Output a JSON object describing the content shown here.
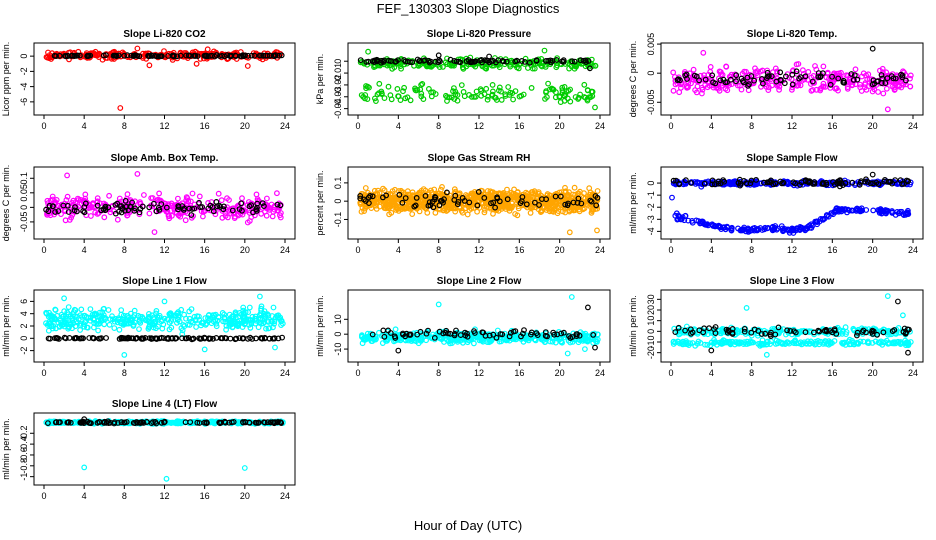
{
  "figure": {
    "title": "FEF_130303  Slope Diagnostics",
    "xlabel": "Hour of Day (UTC)"
  },
  "colors": {
    "red": "#ff0000",
    "green": "#00cc00",
    "magenta": "#ff00ff",
    "orange": "#ffa500",
    "blue": "#0000ff",
    "cyan": "#00ffff",
    "black": "#000000"
  },
  "chart_data": [
    {
      "type": "scatter",
      "title": "Slope Li-820 CO2",
      "ylabel": "Licor ppm per min.",
      "xlim": [
        0,
        24
      ],
      "ylim": [
        -7.2,
        1.2
      ],
      "xticks": [
        0,
        4,
        8,
        12,
        16,
        20,
        24
      ],
      "yticks": [
        -6,
        -4,
        -2,
        0
      ],
      "series": [
        {
          "color": "red",
          "bands": [
            {
              "center": 0.1,
              "spread": 0.7,
              "n": 260
            }
          ],
          "outliers": [
            [
              7.6,
              -6.8
            ],
            [
              10.5,
              -1.2
            ],
            [
              15.2,
              -1.0
            ],
            [
              20.3,
              -1.3
            ],
            [
              16.3,
              0.9
            ],
            [
              9.3,
              1.0
            ]
          ]
        },
        {
          "color": "black",
          "bands": [
            {
              "center": 0.05,
              "spread": 0.12,
              "n": 110
            }
          ],
          "outliers": []
        }
      ]
    },
    {
      "type": "scatter",
      "title": "Slope Li-820 Pressure",
      "ylabel": "kPa per min.",
      "xlim": [
        0,
        24
      ],
      "ylim": [
        -0.042,
        0.012
      ],
      "xticks": [
        0,
        4,
        8,
        12,
        16,
        20,
        24
      ],
      "yticks": [
        -0.04,
        -0.03,
        -0.02,
        -0.01,
        0.0
      ],
      "series": [
        {
          "color": "green",
          "bands": [
            {
              "center": -0.002,
              "spread": 0.006,
              "n": 230
            },
            {
              "center": -0.028,
              "spread": 0.012,
              "n": 140
            }
          ],
          "outliers": [
            [
              1.0,
              0.008
            ],
            [
              18.5,
              0.009
            ],
            [
              23.5,
              -0.039
            ]
          ]
        },
        {
          "color": "black",
          "bands": [
            {
              "center": 0.0,
              "spread": 0.002,
              "n": 90
            }
          ],
          "outliers": [
            [
              8.0,
              0.005
            ],
            [
              13.0,
              0.004
            ],
            [
              23.0,
              -0.006
            ]
          ]
        }
      ]
    },
    {
      "type": "scatter",
      "title": "Slope Li-820 Temp.",
      "ylabel": "degrees C per min.",
      "xlim": [
        0,
        24
      ],
      "ylim": [
        -0.0065,
        0.0045
      ],
      "xticks": [
        0,
        4,
        8,
        12,
        16,
        20,
        24
      ],
      "yticks": [
        -0.005,
        0.0,
        0.005
      ],
      "series": [
        {
          "color": "magenta",
          "bands": [
            {
              "center": -0.0012,
              "spread": 0.0032,
              "n": 330
            }
          ],
          "outliers": [
            [
              21.5,
              -0.0062
            ],
            [
              3.2,
              0.0035
            ]
          ]
        },
        {
          "color": "black",
          "bands": [
            {
              "center": -0.001,
              "spread": 0.0018,
              "n": 80
            }
          ],
          "outliers": [
            [
              20.0,
              0.0042
            ]
          ]
        }
      ]
    },
    {
      "type": "scatter",
      "title": "Slope Amb. Box Temp.",
      "ylabel": "degrees C per min.",
      "xlim": [
        0,
        24
      ],
      "ylim": [
        -0.095,
        0.125
      ],
      "xticks": [
        0,
        4,
        8,
        12,
        16,
        20,
        24
      ],
      "yticks": [
        -0.05,
        0.0,
        0.05,
        0.1
      ],
      "series": [
        {
          "color": "magenta",
          "bands": [
            {
              "center": 0.0,
              "spread": 0.06,
              "n": 330
            }
          ],
          "outliers": [
            [
              9.3,
              0.115
            ],
            [
              2.3,
              0.11
            ],
            [
              11.0,
              -0.085
            ]
          ]
        },
        {
          "color": "black",
          "bands": [
            {
              "center": 0.0,
              "spread": 0.03,
              "n": 90
            }
          ],
          "outliers": []
        }
      ]
    },
    {
      "type": "scatter",
      "title": "Slope Gas Stream RH",
      "ylabel": "percent per min.",
      "xlim": [
        0,
        24
      ],
      "ylim": [
        -0.185,
        0.165
      ],
      "xticks": [
        0,
        4,
        8,
        12,
        16,
        20,
        24
      ],
      "yticks": [
        -0.1,
        0.0,
        0.1
      ],
      "series": [
        {
          "color": "orange",
          "bands": [
            {
              "center": 0.0,
              "spread": 0.09,
              "n": 900
            }
          ],
          "outliers": [
            [
              23.7,
              -0.16
            ],
            [
              21.0,
              -0.17
            ]
          ]
        },
        {
          "color": "black",
          "bands": [
            {
              "center": 0.0,
              "spread": 0.06,
              "n": 70
            }
          ],
          "outliers": []
        }
      ]
    },
    {
      "type": "scatter",
      "title": "Slope Sample Flow",
      "ylabel": "ml/min per min.",
      "xlim": [
        0,
        24
      ],
      "ylim": [
        -4.3,
        1.0
      ],
      "xticks": [
        0,
        4,
        8,
        12,
        16,
        20,
        24
      ],
      "yticks": [
        -4,
        -3,
        -2,
        -1,
        0
      ],
      "series": [
        {
          "color": "blue",
          "bands": [
            {
              "center": 0.0,
              "spread": 0.25,
              "n": 260
            }
          ],
          "curve": [
            [
              0.3,
              -2.7
            ],
            [
              2,
              -3.1
            ],
            [
              4,
              -3.5
            ],
            [
              6,
              -3.8
            ],
            [
              8,
              -3.9
            ],
            [
              10,
              -3.7
            ],
            [
              12,
              -3.9
            ],
            [
              13.5,
              -3.8
            ],
            [
              15,
              -3.0
            ],
            [
              16.5,
              -2.2
            ],
            [
              18,
              -2.2
            ],
            [
              20,
              -2.3
            ],
            [
              22,
              -2.4
            ],
            [
              23.8,
              -2.5
            ]
          ],
          "curve_spread": 0.3,
          "curve_n": 230,
          "outliers": [
            [
              0.1,
              -1.2
            ],
            [
              3.0,
              -0.3
            ]
          ]
        },
        {
          "color": "black",
          "bands": [
            {
              "center": 0.05,
              "spread": 0.35,
              "n": 90
            }
          ],
          "outliers": [
            [
              20.0,
              0.7
            ]
          ]
        }
      ]
    },
    {
      "type": "scatter",
      "title": "Slope Line 1 Flow",
      "ylabel": "ml/min per min.",
      "xlim": [
        0,
        24
      ],
      "ylim": [
        -3.2,
        7.2
      ],
      "xticks": [
        0,
        4,
        8,
        12,
        16,
        20,
        24
      ],
      "yticks": [
        -2,
        0,
        2,
        4,
        6
      ],
      "series": [
        {
          "color": "cyan",
          "bands": [
            {
              "center": 3.0,
              "spread": 2.5,
              "n": 400
            }
          ],
          "outliers": [
            [
              8.0,
              -2.7
            ],
            [
              2.0,
              6.5
            ],
            [
              21.5,
              6.8
            ],
            [
              12.0,
              6.0
            ],
            [
              16.0,
              -1.8
            ],
            [
              23.0,
              -1.5
            ]
          ]
        },
        {
          "color": "black",
          "bands": [
            {
              "center": 0.0,
              "spread": 0.2,
              "n": 120
            }
          ],
          "outliers": []
        }
      ]
    },
    {
      "type": "scatter",
      "title": "Slope Line 2 Flow",
      "ylabel": "ml/min per min.",
      "xlim": [
        0,
        24
      ],
      "ylim": [
        -16,
        27
      ],
      "xticks": [
        0,
        4,
        8,
        12,
        16,
        20,
        24
      ],
      "yticks": [
        -10,
        0,
        10
      ],
      "series": [
        {
          "color": "cyan",
          "bands": [
            {
              "center": -2.0,
              "spread": 5.5,
              "n": 420
            }
          ],
          "outliers": [
            [
              8.0,
              20.0
            ],
            [
              21.2,
              25.0
            ],
            [
              20.8,
              -13.0
            ],
            [
              22.5,
              -10.0
            ]
          ]
        },
        {
          "color": "black",
          "bands": [
            {
              "center": 0.0,
              "spread": 4.0,
              "n": 70
            }
          ],
          "outliers": [
            [
              22.8,
              18.0
            ],
            [
              4.0,
              -11.0
            ],
            [
              23.5,
              -9.0
            ]
          ]
        }
      ]
    },
    {
      "type": "scatter",
      "title": "Slope Line 3 Flow",
      "ylabel": "ml/min per min.",
      "xlim": [
        0,
        24
      ],
      "ylim": [
        -25,
        35
      ],
      "xticks": [
        0,
        4,
        8,
        12,
        16,
        20,
        24
      ],
      "yticks": [
        -20,
        -10,
        0,
        10,
        20,
        30
      ],
      "series": [
        {
          "color": "cyan",
          "bands": [
            {
              "center": 0.0,
              "spread": 5.0,
              "n": 230
            },
            {
              "center": -11.0,
              "spread": 3.5,
              "n": 200
            }
          ],
          "outliers": [
            [
              7.5,
              22.0
            ],
            [
              21.5,
              33.0
            ],
            [
              23.0,
              15.0
            ],
            [
              9.5,
              -22.0
            ]
          ]
        },
        {
          "color": "black",
          "bands": [
            {
              "center": 0.0,
              "spread": 5.0,
              "n": 70
            }
          ],
          "outliers": [
            [
              22.5,
              28.0
            ],
            [
              4.0,
              -18.0
            ],
            [
              23.5,
              -20.0
            ]
          ]
        }
      ]
    },
    {
      "type": "scatter",
      "title": "Slope Line 4 (LT) Flow",
      "ylabel": "ml/min per min.",
      "xlim": [
        0,
        24
      ],
      "ylim": [
        -1.08,
        0.1
      ],
      "xticks": [
        0,
        4,
        8,
        12,
        16,
        20,
        24
      ],
      "yticks": [
        -1.0,
        -0.8,
        -0.6,
        -0.4,
        -0.2
      ],
      "series": [
        {
          "color": "cyan",
          "bands": [
            {
              "center": 0.0,
              "spread": 0.035,
              "n": 330
            }
          ],
          "outliers": [
            [
              4.0,
              -0.83
            ],
            [
              20.0,
              -0.84
            ],
            [
              12.2,
              -1.04
            ]
          ]
        },
        {
          "color": "black",
          "bands": [
            {
              "center": 0.0,
              "spread": 0.03,
              "n": 100
            }
          ],
          "outliers": [
            [
              4.0,
              0.06
            ]
          ]
        }
      ]
    }
  ]
}
